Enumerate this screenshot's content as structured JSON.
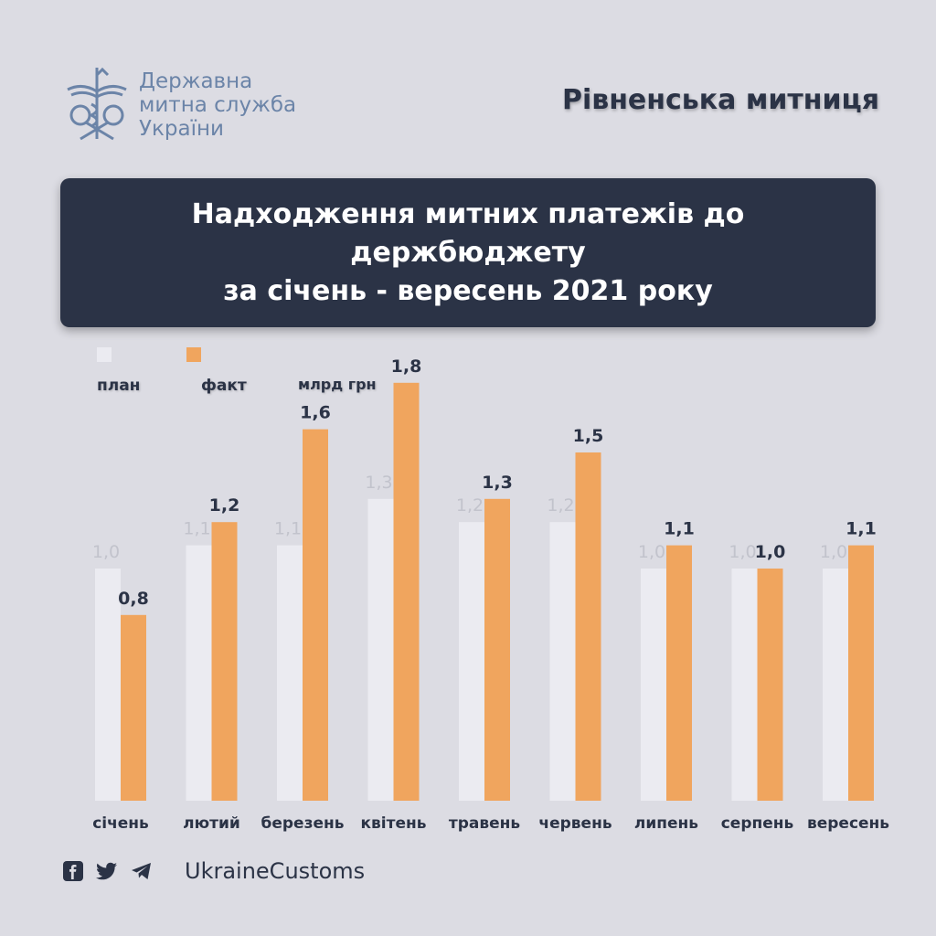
{
  "header": {
    "org_lines": [
      "Державна",
      "митна служба",
      "України"
    ],
    "office": "Рівненська митниця"
  },
  "title": {
    "lines": [
      "Надходження митних платежів до",
      "держбюджету",
      "за січень - вересень 2021 року"
    ]
  },
  "colors": {
    "plan": "#ebebf1",
    "fact": "#f0a55e",
    "dark": "#2b3346",
    "background": "#dcdce3"
  },
  "chart_data": {
    "type": "bar",
    "unit_label": "млрд грн",
    "categories": [
      "січень",
      "лютий",
      "березень",
      "квітень",
      "травень",
      "червень",
      "липень",
      "серпень",
      "вересень"
    ],
    "series": [
      {
        "name": "план",
        "values": [
          1.0,
          1.1,
          1.1,
          1.3,
          1.2,
          1.2,
          1.0,
          1.0,
          1.0
        ]
      },
      {
        "name": "факт",
        "values": [
          0.8,
          1.2,
          1.6,
          1.8,
          1.3,
          1.5,
          1.1,
          1.0,
          1.1
        ]
      }
    ],
    "plan_labels": [
      "1,0",
      "1,1",
      "1,1",
      "1,3",
      "1,2",
      "1,2",
      "1,0",
      "1,0",
      "1,0"
    ],
    "fact_labels": [
      "0,8",
      "1,2",
      "1,6",
      "1,8",
      "1,3",
      "1,5",
      "1,1",
      "1,0",
      "1,1"
    ],
    "legend_position": "top-left",
    "grid": false
  },
  "footer": {
    "icons": [
      "facebook-icon",
      "twitter-icon",
      "telegram-icon"
    ],
    "handle": "UkraineCustoms"
  }
}
